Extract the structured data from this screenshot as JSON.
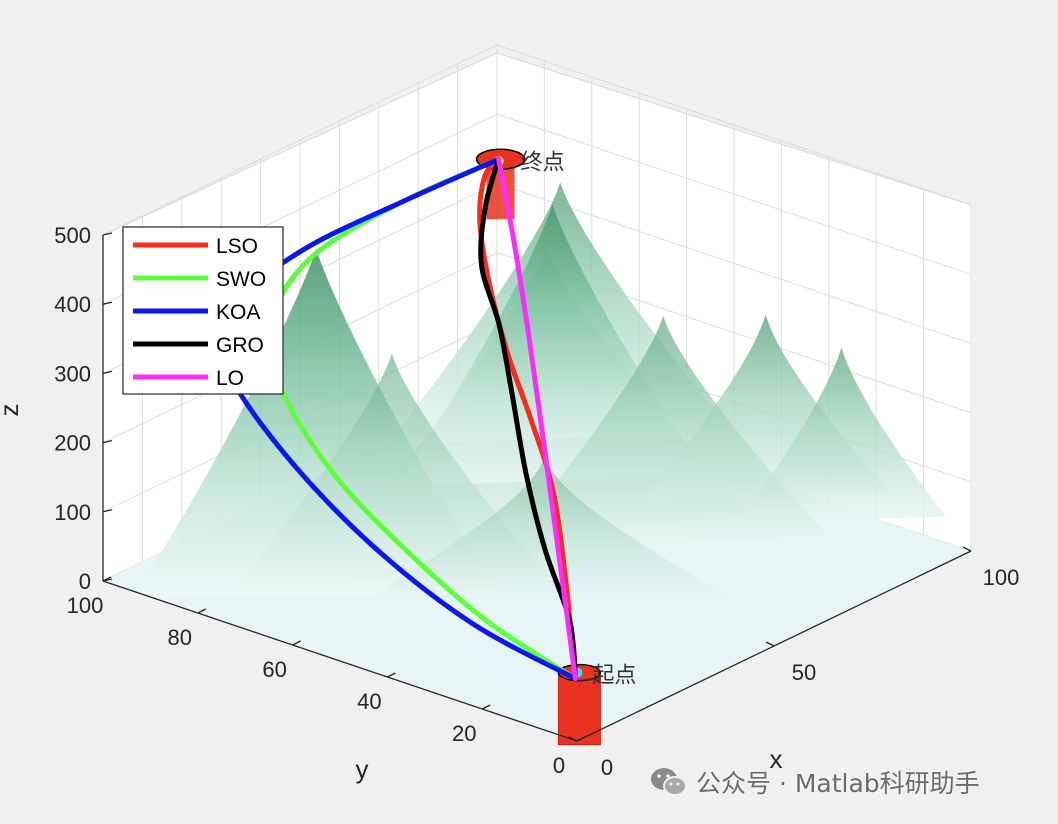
{
  "chart_data": {
    "type": "surface3d",
    "xlabel": "x",
    "ylabel": "y",
    "zlabel": "z",
    "x_ticks": [
      "0",
      "50",
      "100"
    ],
    "y_ticks": [
      "0",
      "20",
      "40",
      "60",
      "80",
      "100"
    ],
    "z_ticks": [
      "0",
      "100",
      "200",
      "300",
      "400",
      "500"
    ],
    "xlim": [
      0,
      100
    ],
    "ylim": [
      0,
      100
    ],
    "zlim": [
      0,
      500
    ],
    "grid": true,
    "legend_position": "top-left",
    "terrain_color": "#2e8b57",
    "start_label": "起点",
    "end_label": "终点",
    "series": [
      {
        "name": "LSO",
        "color": "#ff2a1a",
        "points": [
          [
            2,
            2,
            80
          ],
          [
            14,
            14,
            160
          ],
          [
            30,
            30,
            210
          ],
          [
            45,
            47,
            230
          ],
          [
            57,
            62,
            260
          ],
          [
            68,
            75,
            300
          ],
          [
            80,
            87,
            330
          ],
          [
            92,
            96,
            340
          ],
          [
            98,
            98,
            345
          ]
        ]
      },
      {
        "name": "SWO",
        "color": "#5cff3a",
        "points": [
          [
            2,
            2,
            80
          ],
          [
            4,
            22,
            110
          ],
          [
            6,
            40,
            160
          ],
          [
            8,
            58,
            230
          ],
          [
            14,
            74,
            300
          ],
          [
            26,
            86,
            335
          ],
          [
            48,
            96,
            345
          ],
          [
            75,
            99,
            345
          ],
          [
            98,
            98,
            345
          ]
        ]
      },
      {
        "name": "KOA",
        "color": "#0a16f5",
        "points": [
          [
            2,
            2,
            80
          ],
          [
            2,
            24,
            110
          ],
          [
            3,
            46,
            170
          ],
          [
            5,
            66,
            250
          ],
          [
            10,
            82,
            320
          ],
          [
            22,
            92,
            350
          ],
          [
            48,
            98,
            350
          ],
          [
            75,
            99,
            345
          ],
          [
            98,
            98,
            345
          ]
        ]
      },
      {
        "name": "GRO",
        "color": "#000000",
        "points": [
          [
            2,
            2,
            80
          ],
          [
            15,
            14,
            100
          ],
          [
            28,
            30,
            130
          ],
          [
            40,
            44,
            175
          ],
          [
            52,
            57,
            230
          ],
          [
            62,
            68,
            275
          ],
          [
            72,
            80,
            305
          ],
          [
            85,
            90,
            330
          ],
          [
            98,
            98,
            345
          ]
        ]
      },
      {
        "name": "LO",
        "color": "#ff2cff",
        "points": [
          [
            2,
            2,
            80
          ],
          [
            20,
            20,
            145
          ],
          [
            40,
            40,
            215
          ],
          [
            60,
            60,
            280
          ],
          [
            80,
            80,
            325
          ],
          [
            98,
            98,
            345
          ]
        ]
      }
    ]
  },
  "watermark": {
    "text": "公众号 · Matlab科研助手",
    "icon": "wechat-icon"
  }
}
